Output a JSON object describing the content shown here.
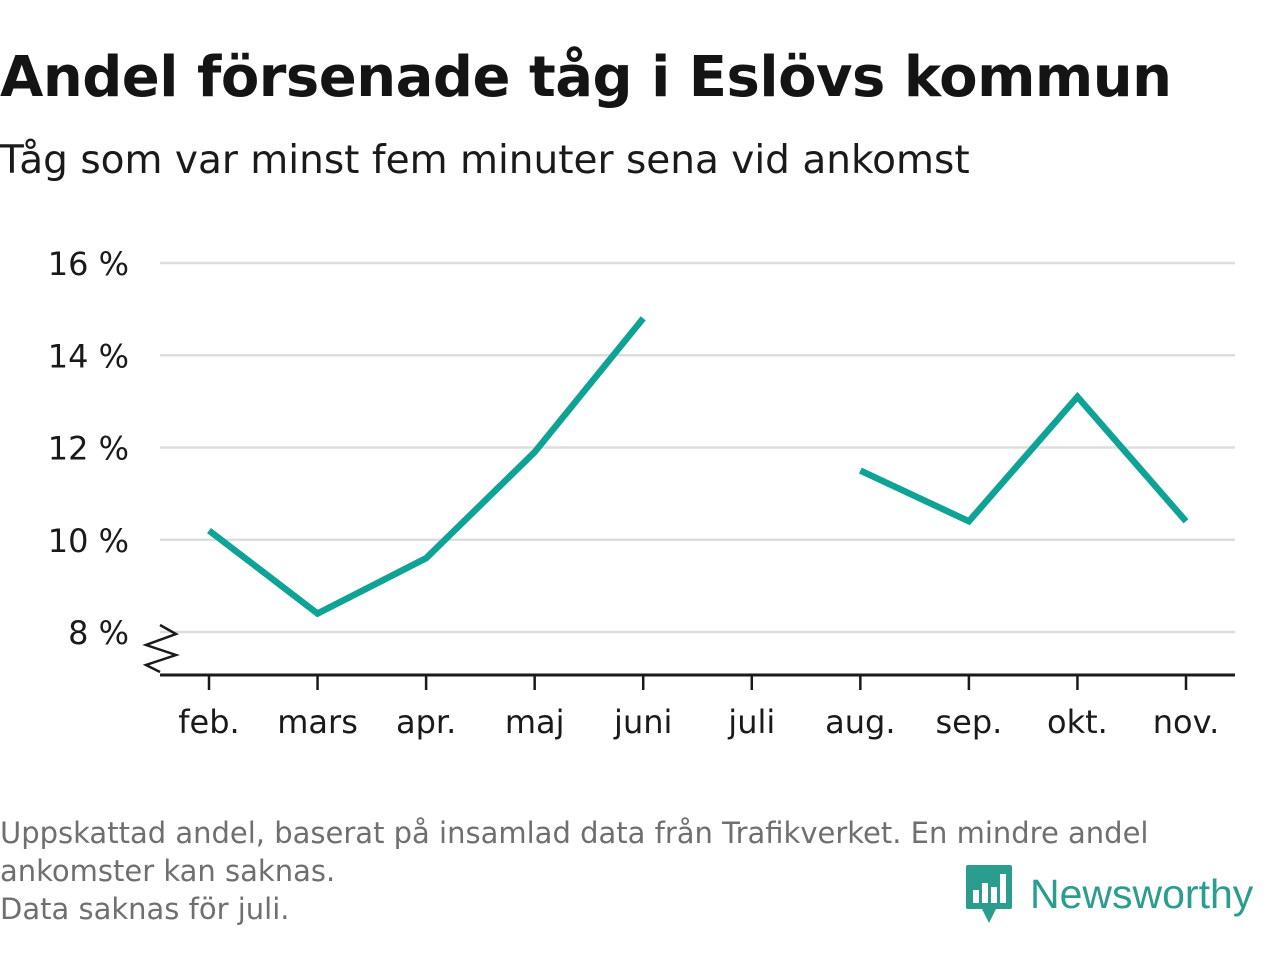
{
  "header": {
    "title": "Andel försenade tåg i Eslövs kommun",
    "subtitle": "Tåg som var minst fem minuter sena vid ankomst"
  },
  "chart_data": {
    "type": "line",
    "title": "Andel försenade tåg i Eslövs kommun",
    "subtitle": "Tåg som var minst fem minuter sena vid ankomst",
    "categories": [
      "feb.",
      "mars",
      "apr.",
      "maj",
      "juni",
      "juli",
      "aug.",
      "sep.",
      "okt.",
      "nov."
    ],
    "series": [
      {
        "values": [
          10.2,
          8.4,
          9.6,
          11.9,
          14.8,
          null,
          11.5,
          10.4,
          13.1,
          10.4
        ],
        "color": "#0fa396"
      }
    ],
    "ylim": [
      8,
      16
    ],
    "yticks": [
      8,
      10,
      12,
      14,
      16
    ],
    "ytick_labels": [
      "8 %",
      "10 %",
      "12 %",
      "14 %",
      "16 %"
    ],
    "axis_break": true,
    "grid": true,
    "legend": "none"
  },
  "footer": {
    "notes": [
      "Uppskattad andel, baserat på insamlad data från Trafikverket. En mindre andel",
      "ankomster kan saknas.",
      "Data saknas för juli."
    ],
    "brand": "Newsworthy",
    "brand_color": "#2a9d8f",
    "brand_icon": "newsworthy-logo-icon"
  }
}
